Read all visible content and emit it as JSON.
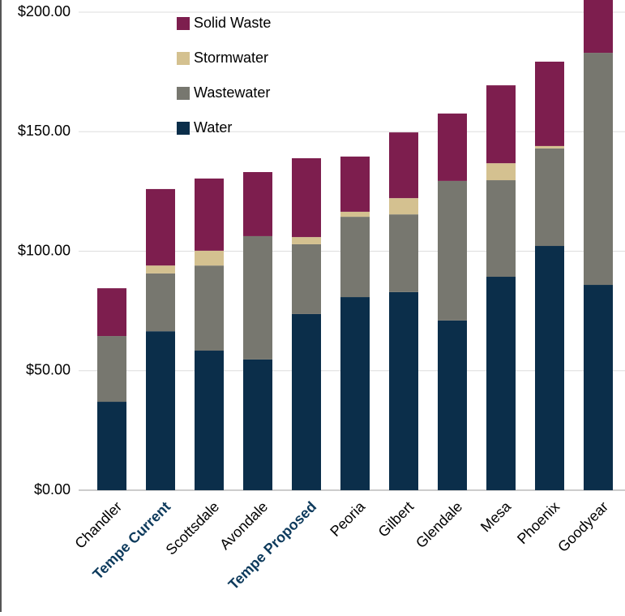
{
  "chart_data": {
    "type": "stacked_bar",
    "categories": [
      "Chandler",
      "Tempe Current",
      "Scottsdale",
      "Avondale",
      "Tempe Proposed",
      "Peoria",
      "Gilbert",
      "Glendale",
      "Mesa",
      "Phoenix",
      "Goodyear"
    ],
    "highlighted": [
      1,
      4
    ],
    "highlight_color": "#0d3a5c",
    "series": [
      {
        "name": "Water",
        "color": "#0b2e4a",
        "values": [
          37,
          66.5,
          58.4,
          54.7,
          73.7,
          80.8,
          82.9,
          71,
          89.3,
          102.2,
          85.9
        ]
      },
      {
        "name": "Wastewater",
        "color": "#77776f",
        "values": [
          27.5,
          24.2,
          35.6,
          51.6,
          29.2,
          33.6,
          32.5,
          58.4,
          40.4,
          40.8,
          97.1
        ]
      },
      {
        "name": "Stormwater",
        "color": "#d4c190",
        "values": [
          0,
          3.3,
          6.2,
          0,
          3,
          2.1,
          6.8,
          0,
          7.1,
          1,
          0
        ]
      },
      {
        "name": "Solid Waste",
        "color": "#7d1e4e",
        "values": [
          20,
          32,
          30.2,
          26.8,
          33,
          23.1,
          27.5,
          28.2,
          32.6,
          35.3,
          27
        ]
      }
    ],
    "ylim": [
      0,
      205
    ],
    "yticks": [
      {
        "value": 0,
        "label": "$0.00"
      },
      {
        "value": 50,
        "label": "$50.00"
      },
      {
        "value": 100,
        "label": "$100.00"
      },
      {
        "value": 150,
        "label": "$150.00"
      },
      {
        "value": 200,
        "label": "$200.00"
      }
    ],
    "grid": true
  }
}
